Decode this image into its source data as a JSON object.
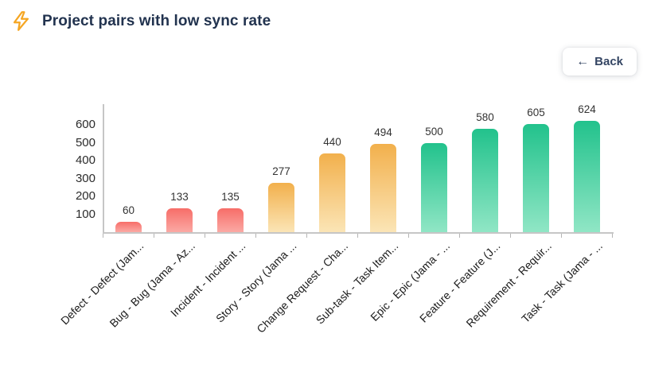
{
  "header": {
    "title": "Project pairs with low sync rate",
    "icon": "lightning-icon"
  },
  "toolbar": {
    "back_label": "Back",
    "back_icon": "arrow-left-icon"
  },
  "chart_data": {
    "type": "bar",
    "title": "Project pairs with low sync rate",
    "categories": [
      "Defect - Defect (Jam...",
      "Bug - Bug (Jama - Az...",
      "Incident - Incident ...",
      "Story - Story (Jama ...",
      "Change Request - Cha...",
      "Sub-task - Task Item...",
      "Epic - Epic (Jama - ...",
      "Feature - Feature (J...",
      "Requirement - Requir...",
      "Task - Task (Jama - ..."
    ],
    "values": [
      60,
      133,
      135,
      277,
      440,
      494,
      500,
      580,
      605,
      624
    ],
    "bar_colors": [
      "red",
      "red",
      "red",
      "orange",
      "orange",
      "orange",
      "green",
      "green",
      "green",
      "green"
    ],
    "color_gradients": {
      "red": [
        "#f76d68",
        "#fba9a4"
      ],
      "orange": [
        "#f2b04c",
        "#fbe5b6"
      ],
      "green": [
        "#22c28c",
        "#90e6c5"
      ]
    },
    "y_ticks": [
      100,
      200,
      300,
      400,
      500,
      600
    ],
    "ylim": [
      0,
      727
    ],
    "x_label_rotation": -45,
    "grid": false,
    "legend": false,
    "value_labels": true,
    "accent_color": "#f5a623",
    "title_color": "#22334f"
  }
}
